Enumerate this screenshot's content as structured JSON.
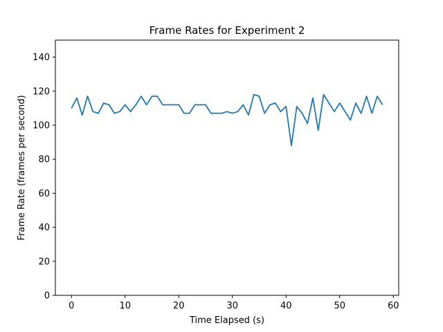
{
  "chart_data": {
    "type": "line",
    "title": "Frame Rates for Experiment 2",
    "xlabel": "Time Elapsed (s)",
    "ylabel": "Frame Rate (frames per second)",
    "xlim": [
      -3,
      61
    ],
    "ylim": [
      0,
      150
    ],
    "xticks": [
      0,
      10,
      20,
      30,
      40,
      50,
      60
    ],
    "yticks": [
      0,
      20,
      40,
      60,
      80,
      100,
      120,
      140
    ],
    "grid": false,
    "series": [
      {
        "color": "#1f77b4",
        "x": [
          0,
          1,
          2,
          3,
          4,
          5,
          6,
          7,
          8,
          9,
          10,
          11,
          12,
          13,
          14,
          15,
          16,
          17,
          18,
          19,
          20,
          21,
          22,
          23,
          24,
          25,
          26,
          27,
          28,
          29,
          30,
          31,
          32,
          33,
          34,
          35,
          36,
          37,
          38,
          39,
          40,
          41,
          42,
          43,
          44,
          45,
          46,
          47,
          48,
          49,
          50,
          51,
          52,
          53,
          54,
          55,
          56,
          57,
          58
        ],
        "values": [
          110,
          116,
          106,
          117,
          108,
          107,
          113,
          112,
          107,
          108,
          112,
          108,
          112,
          117,
          112,
          117,
          117,
          112,
          112,
          112,
          112,
          107,
          107,
          112,
          112,
          112,
          107,
          107,
          107,
          108,
          107,
          108,
          112,
          106,
          118,
          117,
          107,
          112,
          113,
          108,
          111,
          88,
          111,
          107,
          101,
          116,
          97,
          118,
          113,
          108,
          113,
          108,
          103,
          113,
          107,
          117,
          107,
          117,
          112
        ]
      }
    ]
  }
}
